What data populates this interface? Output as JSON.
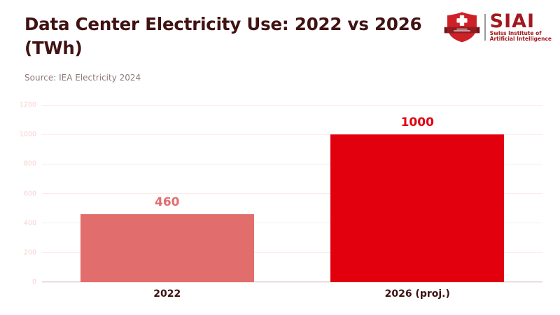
{
  "header": {
    "title": "Data Center Electricity Use: 2022 vs 2026 (TWh)",
    "source": "Source: IEA Electricity 2024"
  },
  "logo": {
    "name": "SIAI",
    "subtitle_line1": "Swiss Institute of",
    "subtitle_line2": "Artificial Intelligence",
    "shield_icon": "swiss-shield-icon"
  },
  "chart_data": {
    "type": "bar",
    "title": "Data Center Electricity Use: 2022 vs 2026 (TWh)",
    "xlabel": "",
    "ylabel": "",
    "categories": [
      "2022",
      "2026 (proj.)"
    ],
    "values": [
      460,
      1000
    ],
    "value_labels": [
      "460",
      "1000"
    ],
    "bar_colors": [
      "#e26d6d",
      "#e2000f"
    ],
    "label_colors": [
      "#e26d6d",
      "#e2000f"
    ],
    "ylim": [
      0,
      1200
    ],
    "yticks": [
      0,
      200,
      400,
      600,
      800,
      1000,
      1200
    ],
    "grid": true,
    "legend": "none",
    "bar_width_fraction": 0.695
  },
  "colors": {
    "background": "#ffffff",
    "title_text": "#411212",
    "source_text": "#8f7878",
    "ytick_text": "#f7d2d0",
    "gridline": "#fceae9",
    "axis_line": "#d9d4d4",
    "xtick_text": "#3f1111",
    "logo_shield_red": "#ce2027",
    "logo_banner_dark_red": "#8e1c22",
    "logo_text_red": "#a3191f"
  }
}
